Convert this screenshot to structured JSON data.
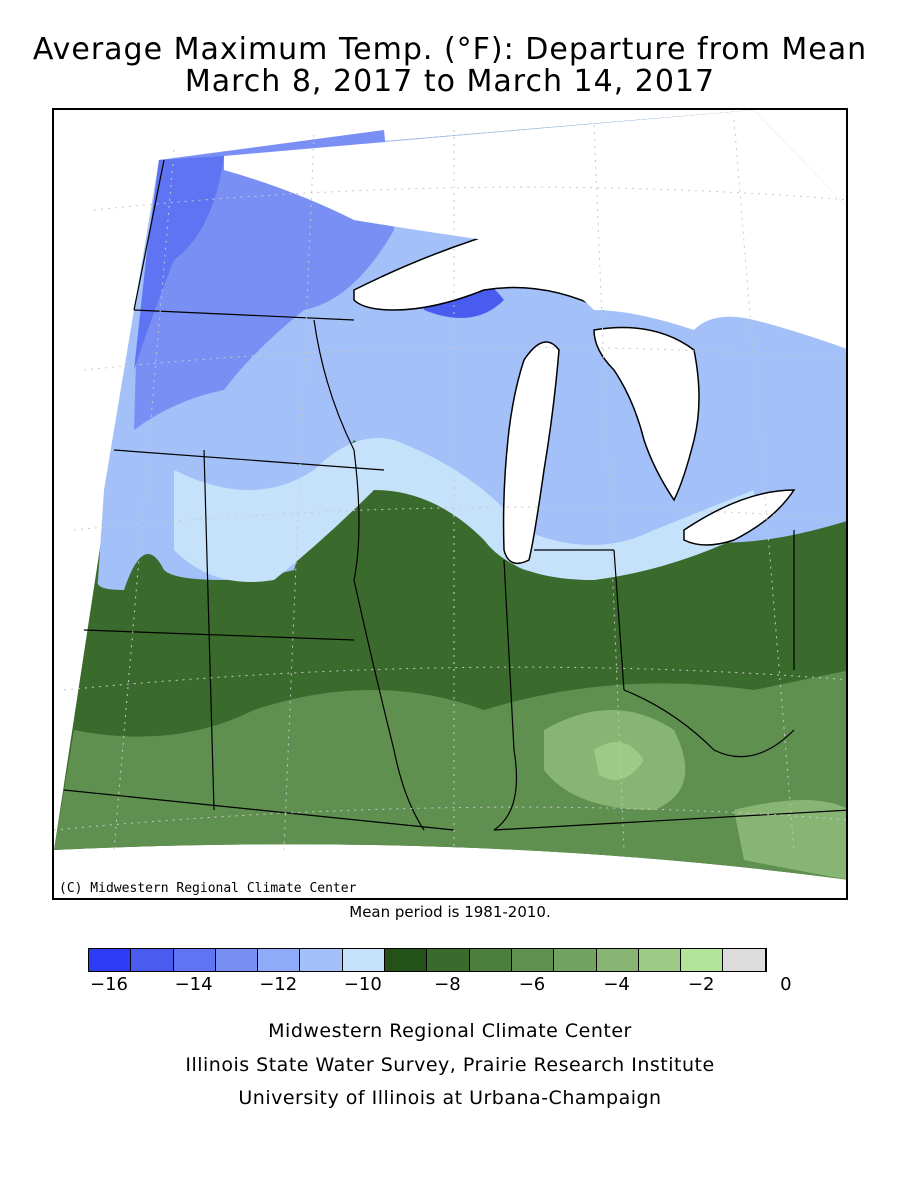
{
  "title": {
    "line1": "Average Maximum Temp. (°F): Departure from Mean",
    "line2": "March 8, 2017 to March 14, 2017"
  },
  "map": {
    "copyright": "(C) Midwestern Regional Climate Center",
    "water_color": "#ffffff",
    "border_color": "#000000"
  },
  "mean_period": "Mean period is 1981-2010.",
  "legend": {
    "colors": [
      "#2f3cf5",
      "#4a5cf0",
      "#5f74f2",
      "#7a8ff4",
      "#8faaf6",
      "#a3c0f8",
      "#c6e2fb",
      "#245118",
      "#3a6b2c",
      "#4c7e3c",
      "#5f9050",
      "#74a263",
      "#88b574",
      "#9dca84",
      "#b3e49c",
      "#dcdcdc"
    ],
    "ticks": [
      {
        "label": "−16",
        "index": 1
      },
      {
        "label": "−14",
        "index": 3
      },
      {
        "label": "−12",
        "index": 5
      },
      {
        "label": "−10",
        "index": 7
      },
      {
        "label": "−8",
        "index": 9
      },
      {
        "label": "−6",
        "index": 11
      },
      {
        "label": "−4",
        "index": 13
      },
      {
        "label": "−2",
        "index": 15
      },
      {
        "label": "0",
        "index": 17
      }
    ]
  },
  "credits": {
    "line1": "Midwestern Regional Climate Center",
    "line2": "Illinois State Water Survey, Prairie Research Institute",
    "line3": "University of Illinois at Urbana-Champaign"
  }
}
